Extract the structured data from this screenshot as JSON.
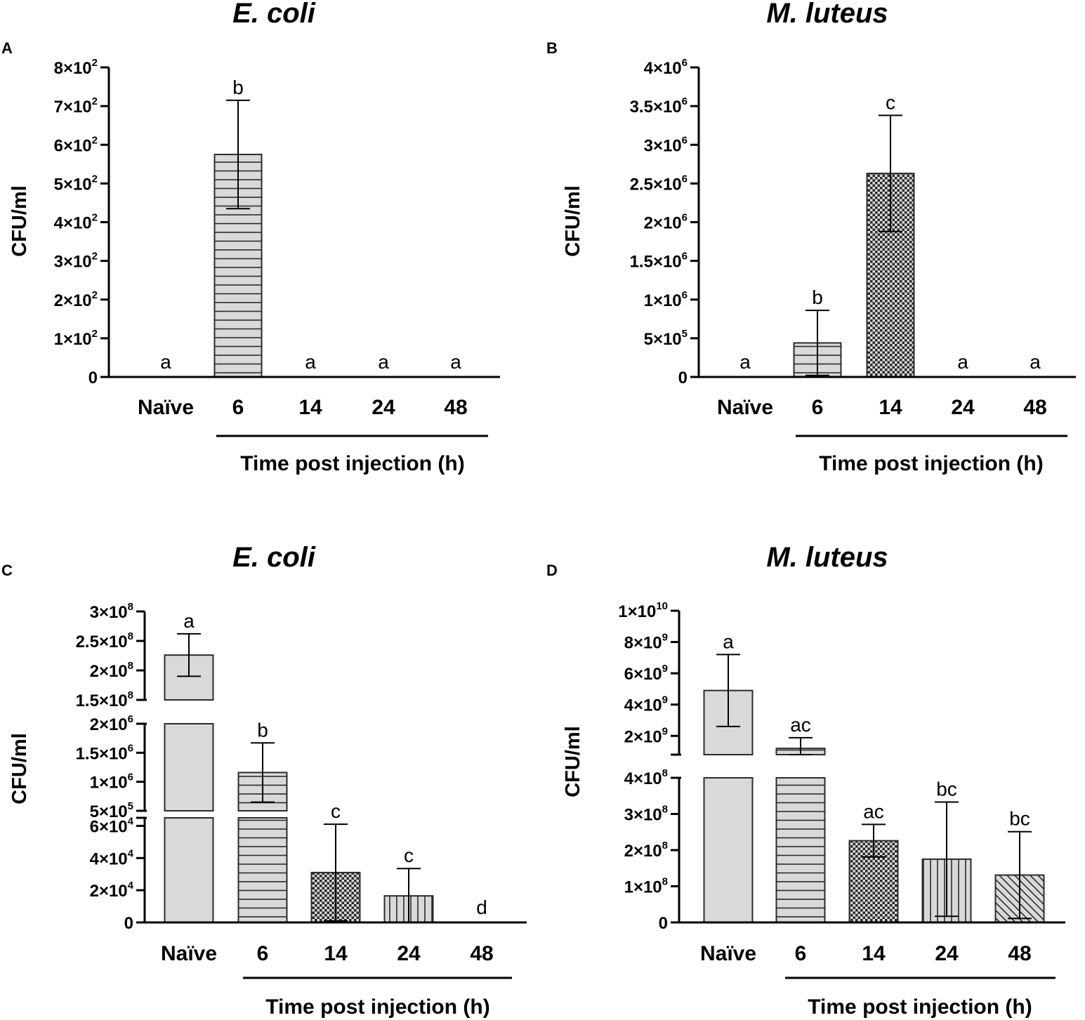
{
  "colors": {
    "axis": "#000000",
    "bar_fill": "#d9d9d9",
    "bar_stroke": "#2b2b2b"
  },
  "chart_data": [
    {
      "id": "A",
      "panel_label": "A",
      "type": "bar",
      "title": "E. coli",
      "xlabel": "Time post injection (h)",
      "ylabel": "CFU/ml",
      "categories": [
        "Naïve",
        "6",
        "14",
        "24",
        "48"
      ],
      "values": [
        0,
        575,
        0,
        0,
        0
      ],
      "errors": [
        0,
        140,
        0,
        0,
        0
      ],
      "significance": [
        "a",
        "b",
        "a",
        "a",
        "a"
      ],
      "patterns": [
        "solid",
        "hlines",
        "checker",
        "vlines",
        "diag"
      ],
      "ylim": [
        0,
        800
      ],
      "y_ticks": [
        {
          "value": 0,
          "mant": "0",
          "exp": ""
        },
        {
          "value": 100,
          "mant": "1×10",
          "exp": "2"
        },
        {
          "value": 200,
          "mant": "2×10",
          "exp": "2"
        },
        {
          "value": 300,
          "mant": "3×10",
          "exp": "2"
        },
        {
          "value": 400,
          "mant": "4×10",
          "exp": "2"
        },
        {
          "value": 500,
          "mant": "5×10",
          "exp": "2"
        },
        {
          "value": 600,
          "mant": "6×10",
          "exp": "2"
        },
        {
          "value": 700,
          "mant": "7×10",
          "exp": "2"
        },
        {
          "value": 800,
          "mant": "8×10",
          "exp": "2"
        }
      ]
    },
    {
      "id": "B",
      "panel_label": "B",
      "type": "bar",
      "title": "M. luteus",
      "xlabel": "Time post injection (h)",
      "ylabel": "CFU/ml",
      "categories": [
        "Naïve",
        "6",
        "14",
        "24",
        "48"
      ],
      "values": [
        0,
        440000,
        2630000,
        0,
        0
      ],
      "errors": [
        0,
        420000,
        750000,
        0,
        0
      ],
      "significance": [
        "a",
        "b",
        "c",
        "a",
        "a"
      ],
      "patterns": [
        "solid",
        "hlines",
        "checker",
        "vlines",
        "diag"
      ],
      "ylim": [
        0,
        4000000
      ],
      "y_ticks": [
        {
          "value": 0,
          "mant": "0",
          "exp": ""
        },
        {
          "value": 500000,
          "mant": "5×10",
          "exp": "5"
        },
        {
          "value": 1000000,
          "mant": "1×10",
          "exp": "6"
        },
        {
          "value": 1500000,
          "mant": "1.5×10",
          "exp": "6"
        },
        {
          "value": 2000000,
          "mant": "2×10",
          "exp": "6"
        },
        {
          "value": 2500000,
          "mant": "2.5×10",
          "exp": "6"
        },
        {
          "value": 3000000,
          "mant": "3×10",
          "exp": "6"
        },
        {
          "value": 3500000,
          "mant": "3.5×10",
          "exp": "6"
        },
        {
          "value": 4000000,
          "mant": "4×10",
          "exp": "6"
        }
      ]
    },
    {
      "id": "C",
      "panel_label": "C",
      "type": "bar",
      "title": "E. coli",
      "xlabel": "Time post injection (h)",
      "ylabel": "CFU/ml",
      "categories": [
        "Naïve",
        "6",
        "14",
        "24",
        "48"
      ],
      "values": [
        226000000,
        1160000,
        31000,
        16500,
        0
      ],
      "errors": [
        36000000,
        510000,
        30000,
        17000,
        0
      ],
      "significance": [
        "a",
        "b",
        "c",
        "c",
        "d"
      ],
      "patterns": [
        "solid",
        "hlines",
        "checker",
        "vlines",
        "diag"
      ],
      "broken_axis": true,
      "segments": [
        {
          "range": [
            0,
            65000
          ],
          "ticks": [
            {
              "value": 0,
              "mant": "0",
              "exp": ""
            },
            {
              "value": 20000,
              "mant": "2×10",
              "exp": "4"
            },
            {
              "value": 40000,
              "mant": "4×10",
              "exp": "4"
            },
            {
              "value": 60000,
              "mant": "6×10",
              "exp": "4"
            }
          ]
        },
        {
          "range": [
            500000,
            2000000
          ],
          "ticks": [
            {
              "value": 500000,
              "mant": "5×10",
              "exp": "5"
            },
            {
              "value": 1000000,
              "mant": "1×10",
              "exp": "6"
            },
            {
              "value": 1500000,
              "mant": "1.5×10",
              "exp": "6"
            },
            {
              "value": 2000000,
              "mant": "2×10",
              "exp": "6"
            }
          ]
        },
        {
          "range": [
            150000000,
            300000000
          ],
          "ticks": [
            {
              "value": 150000000,
              "mant": "1.5×10",
              "exp": "8"
            },
            {
              "value": 200000000,
              "mant": "2×10",
              "exp": "8"
            },
            {
              "value": 250000000,
              "mant": "2.5×10",
              "exp": "8"
            },
            {
              "value": 300000000,
              "mant": "3×10",
              "exp": "8"
            }
          ]
        }
      ]
    },
    {
      "id": "D",
      "panel_label": "D",
      "type": "bar",
      "title": "M. luteus",
      "xlabel": "Time post injection (h)",
      "ylabel": "CFU/ml",
      "categories": [
        "Naïve",
        "6",
        "14",
        "24",
        "48"
      ],
      "values": [
        4900000000,
        1200000000,
        226000000,
        175000000,
        131000000
      ],
      "errors": [
        2300000000,
        680000000,
        45000000,
        158000000,
        120000000
      ],
      "significance": [
        "a",
        "ac",
        "ac",
        "bc",
        "bc"
      ],
      "patterns": [
        "solid",
        "hlines",
        "checker",
        "vlines",
        "diag"
      ],
      "broken_axis": true,
      "segments": [
        {
          "range": [
            0,
            400000000
          ],
          "ticks": [
            {
              "value": 0,
              "mant": "0",
              "exp": ""
            },
            {
              "value": 100000000,
              "mant": "1×10",
              "exp": "8"
            },
            {
              "value": 200000000,
              "mant": "2×10",
              "exp": "8"
            },
            {
              "value": 300000000,
              "mant": "3×10",
              "exp": "8"
            },
            {
              "value": 400000000,
              "mant": "4×10",
              "exp": "8"
            }
          ]
        },
        {
          "range": [
            800000000,
            10000000000
          ],
          "ticks": [
            {
              "value": 2000000000,
              "mant": "2×10",
              "exp": "9"
            },
            {
              "value": 4000000000,
              "mant": "4×10",
              "exp": "9"
            },
            {
              "value": 6000000000,
              "mant": "6×10",
              "exp": "9"
            },
            {
              "value": 8000000000,
              "mant": "8×10",
              "exp": "9"
            },
            {
              "value": 10000000000,
              "mant": "1×10",
              "exp": "10"
            }
          ]
        }
      ]
    }
  ]
}
